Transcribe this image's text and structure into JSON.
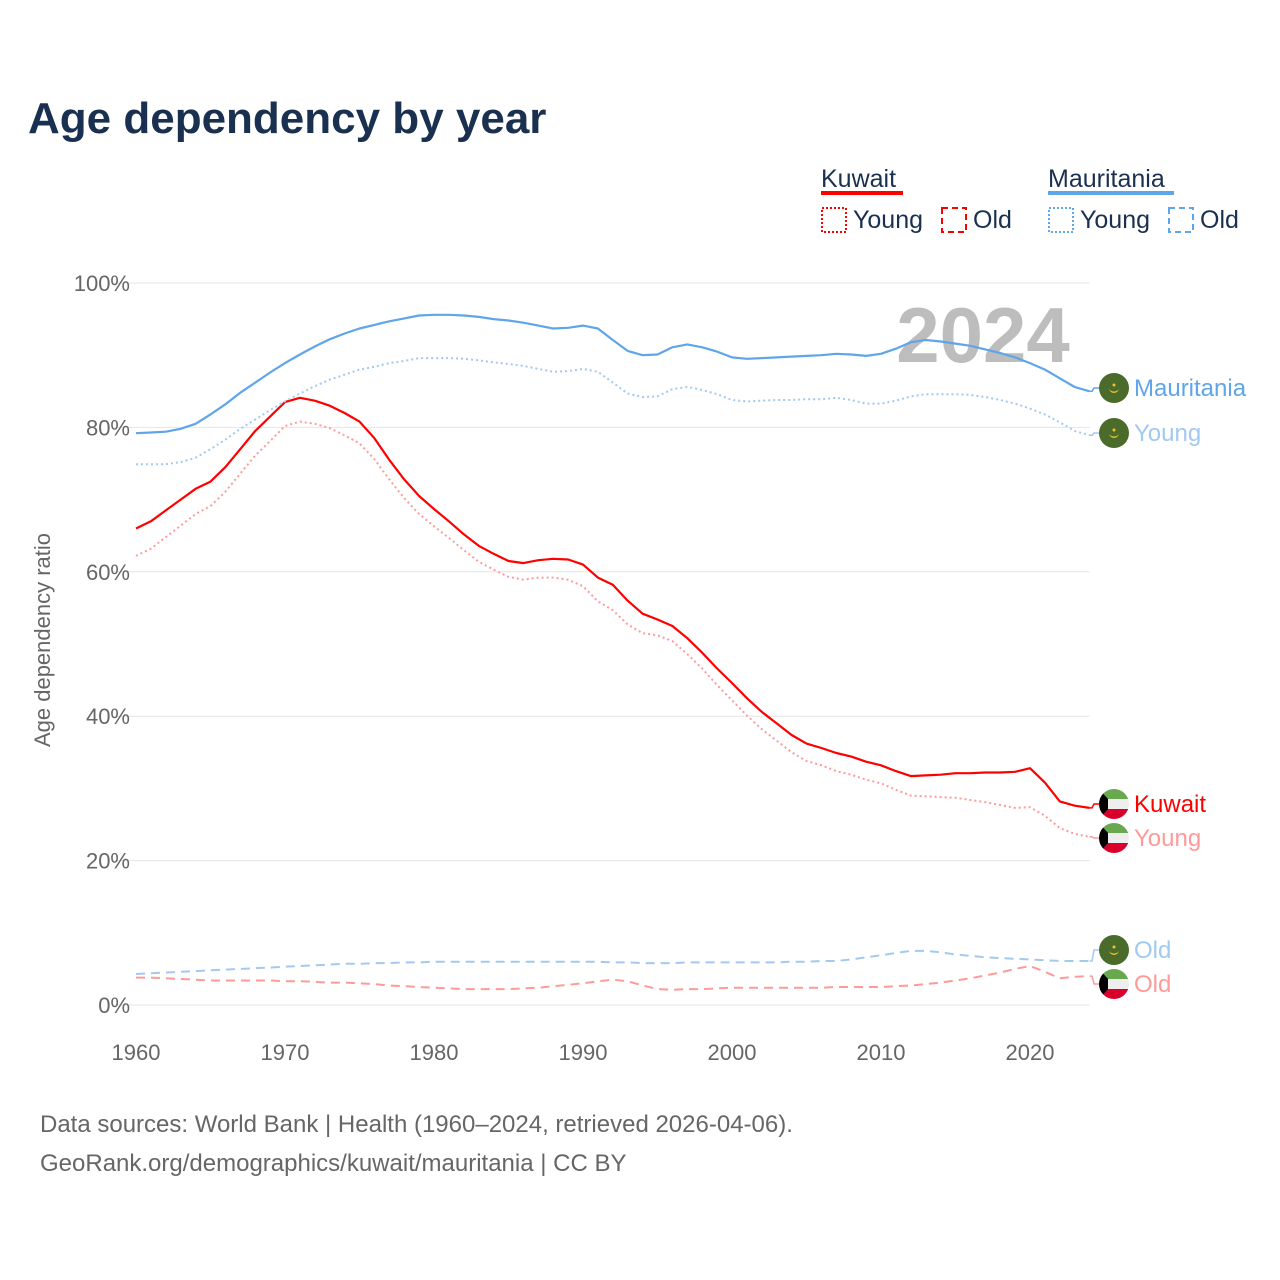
{
  "chart_data": {
    "type": "line",
    "title": "Age dependency by year",
    "ylabel": "Age dependency ratio",
    "xlabel": "",
    "xlim": [
      1960,
      2024
    ],
    "ylim": [
      0,
      100
    ],
    "grid": true,
    "year_overlay": "2024",
    "x_ticks": [
      "1960",
      "1970",
      "1980",
      "1990",
      "2000",
      "2010",
      "2020"
    ],
    "y_ticks": [
      "0%",
      "20%",
      "40%",
      "60%",
      "80%",
      "100%"
    ],
    "legend": {
      "placement": "top-right",
      "groups": [
        {
          "name": "Kuwait",
          "color": "#ff0000",
          "items": [
            "Young",
            "Old"
          ]
        },
        {
          "name": "Mauritania",
          "color": "#5ea5ea",
          "items": [
            "Young",
            "Old"
          ]
        }
      ]
    },
    "x_start": 1960,
    "series": [
      {
        "name": "Kuwait",
        "label": "Kuwait",
        "flag": "kuwait",
        "style": "solid",
        "color": "#ff0000",
        "values": [
          66,
          67,
          68.5,
          70,
          71.5,
          72.5,
          74.5,
          77,
          79.5,
          81.5,
          83.5,
          84.1,
          83.7,
          83,
          82,
          80.8,
          78.5,
          75.5,
          72.8,
          70.5,
          68.7,
          67,
          65.2,
          63.6,
          62.5,
          61.5,
          61.2,
          61.6,
          61.8,
          61.7,
          61,
          59.2,
          58.2,
          56,
          54.2,
          53.4,
          52.5,
          50.8,
          48.8,
          46.6,
          44.6,
          42.5,
          40.6,
          39,
          37.4,
          36.2,
          35.6,
          34.9,
          34.4,
          33.7,
          33.2,
          32.4,
          31.7,
          31.8,
          31.9,
          32.1,
          32.1,
          32.2,
          32.2,
          32.3,
          32.8,
          30.8,
          28.2,
          27.6,
          27.3
        ]
      },
      {
        "name": "Kuwait Young",
        "label": "Young",
        "flag": "kuwait",
        "style": "dotted",
        "color": "#ff9a9a",
        "values": [
          62.2,
          63.2,
          64.8,
          66.4,
          68.0,
          69.1,
          71.1,
          73.6,
          76.1,
          78.1,
          80.2,
          80.8,
          80.5,
          79.9,
          78.9,
          77.8,
          75.6,
          72.8,
          70.2,
          68.0,
          66.3,
          64.7,
          63.0,
          61.4,
          60.3,
          59.3,
          58.9,
          59.2,
          59.2,
          58.9,
          58.0,
          55.9,
          54.7,
          52.7,
          51.5,
          51.2,
          50.4,
          48.6,
          46.6,
          44.3,
          42.2,
          40.1,
          38.2,
          36.6,
          35.0,
          33.8,
          33.2,
          32.4,
          31.9,
          31.2,
          30.7,
          29.8,
          29.0,
          28.9,
          28.8,
          28.7,
          28.4,
          28.1,
          27.7,
          27.3,
          27.4,
          26.2,
          24.5,
          23.7,
          23.3
        ]
      },
      {
        "name": "Kuwait Old",
        "label": "Old",
        "flag": "kuwait",
        "style": "dashed",
        "color": "#ff9a9a",
        "values": [
          3.8,
          3.8,
          3.7,
          3.6,
          3.5,
          3.4,
          3.4,
          3.4,
          3.4,
          3.4,
          3.3,
          3.3,
          3.2,
          3.1,
          3.1,
          3.0,
          2.9,
          2.7,
          2.6,
          2.5,
          2.4,
          2.3,
          2.2,
          2.2,
          2.2,
          2.2,
          2.3,
          2.4,
          2.6,
          2.8,
          3.0,
          3.3,
          3.5,
          3.3,
          2.7,
          2.2,
          2.1,
          2.2,
          2.2,
          2.3,
          2.4,
          2.4,
          2.4,
          2.4,
          2.4,
          2.4,
          2.4,
          2.5,
          2.5,
          2.5,
          2.5,
          2.6,
          2.7,
          2.9,
          3.1,
          3.4,
          3.7,
          4.1,
          4.5,
          5.0,
          5.4,
          4.6,
          3.7,
          3.9,
          4.0
        ]
      },
      {
        "name": "Mauritania",
        "label": "Mauritania",
        "flag": "mauritania",
        "style": "solid",
        "color": "#5ea5ea",
        "values": [
          79.2,
          79.3,
          79.4,
          79.8,
          80.5,
          81.8,
          83.2,
          84.8,
          86.2,
          87.6,
          88.9,
          90.1,
          91.2,
          92.2,
          93.0,
          93.7,
          94.2,
          94.7,
          95.1,
          95.5,
          95.6,
          95.6,
          95.5,
          95.3,
          95.0,
          94.8,
          94.5,
          94.1,
          93.7,
          93.8,
          94.1,
          93.7,
          92.1,
          90.6,
          90.0,
          90.1,
          91.1,
          91.5,
          91.1,
          90.5,
          89.7,
          89.5,
          89.6,
          89.7,
          89.8,
          89.9,
          90.0,
          90.2,
          90.1,
          89.9,
          90.2,
          90.9,
          91.8,
          92.1,
          91.9,
          91.6,
          91.3,
          90.8,
          90.3,
          89.7,
          88.9,
          88.0,
          86.8,
          85.6,
          85.0
        ]
      },
      {
        "name": "Mauritania Young",
        "label": "Young",
        "flag": "mauritania",
        "style": "dotted",
        "color": "#a2c9f1",
        "values": [
          74.9,
          74.9,
          74.9,
          75.2,
          75.8,
          77.0,
          78.3,
          79.8,
          81.1,
          82.4,
          83.6,
          84.7,
          85.7,
          86.6,
          87.3,
          88.0,
          88.4,
          88.9,
          89.2,
          89.6,
          89.6,
          89.6,
          89.5,
          89.3,
          89.0,
          88.8,
          88.5,
          88.1,
          87.7,
          87.8,
          88.1,
          87.7,
          86.2,
          84.7,
          84.2,
          84.3,
          85.3,
          85.6,
          85.2,
          84.6,
          83.8,
          83.6,
          83.7,
          83.8,
          83.8,
          83.9,
          83.9,
          84.1,
          83.8,
          83.3,
          83.3,
          83.7,
          84.3,
          84.6,
          84.6,
          84.6,
          84.5,
          84.2,
          83.8,
          83.3,
          82.6,
          81.8,
          80.7,
          79.5,
          78.9
        ]
      },
      {
        "name": "Mauritania Old",
        "label": "Old",
        "flag": "mauritania",
        "style": "dashed",
        "color": "#a2c9f1",
        "values": [
          4.3,
          4.4,
          4.5,
          4.6,
          4.7,
          4.8,
          4.9,
          5.0,
          5.1,
          5.2,
          5.3,
          5.4,
          5.5,
          5.6,
          5.7,
          5.7,
          5.8,
          5.8,
          5.9,
          5.9,
          6.0,
          6.0,
          6.0,
          6.0,
          6.0,
          6.0,
          6.0,
          6.0,
          6.0,
          6.0,
          6.0,
          6.0,
          5.9,
          5.9,
          5.8,
          5.8,
          5.8,
          5.9,
          5.9,
          5.9,
          5.9,
          5.9,
          5.9,
          5.9,
          6.0,
          6.0,
          6.1,
          6.1,
          6.3,
          6.6,
          6.9,
          7.2,
          7.5,
          7.5,
          7.3,
          7.0,
          6.8,
          6.6,
          6.5,
          6.4,
          6.3,
          6.2,
          6.1,
          6.1,
          6.1
        ]
      }
    ]
  },
  "source": {
    "line1": "Data sources: World Bank | Health (1960–2024, retrieved 2026-04-06).",
    "line2": "GeoRank.org/demographics/kuwait/mauritania | CC BY"
  }
}
